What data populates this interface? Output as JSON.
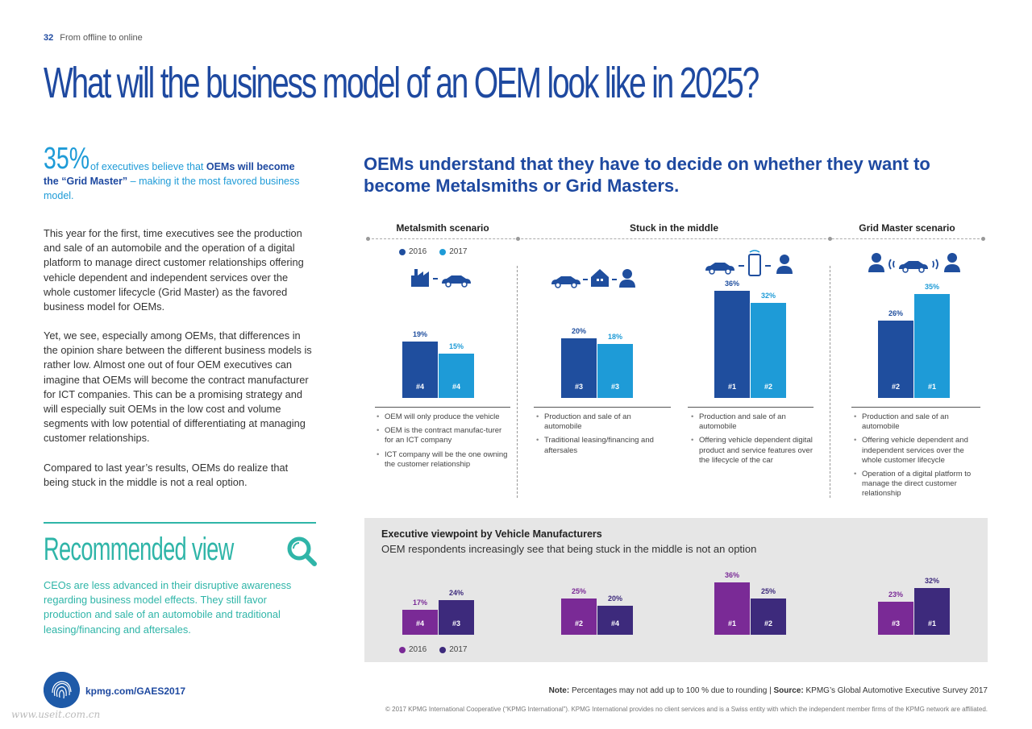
{
  "header": {
    "page_number": "32",
    "section": "From offline to online"
  },
  "title": "What will the business model of an OEM look like in 2025?",
  "stat": {
    "percent": "35%",
    "lead": "of executives believe that",
    "bold": "OEMs will become the “Grid Master”",
    "tail": " – making it the most favored business model."
  },
  "body": [
    "This year for the first, time executives see the production and sale of an automobile and the operation of a digital platform to manage direct customer relationships offering vehicle dependent and independent services over the whole customer lifecycle (Grid Master) as the favored business model for OEMs.",
    "Yet, we see, especially among OEMs, that differences in the opinion share between the different business models is rather low. Almost one out of four OEM executives can imagine that OEMs will become the contract manufacturer for ICT companies. This can be a promising strategy and will especially suit OEMs in the low cost and volume segments with low potential of differentiating at managing customer relationships.",
    "Compared to last year’s results, OEMs do realize that being stuck in the middle is not a real option."
  ],
  "recommended": {
    "title": "Recommended view",
    "text": "CEOs are less advanced in their disruptive awareness regarding business model effects. They still favor production and sale of an automobile and traditional leasing/financing and aftersales."
  },
  "headline": "OEMs understand that they have to decide on whether they want to become Metalsmiths or Grid Masters.",
  "scenarios": [
    "Metalsmith scenario",
    "Stuck in the middle",
    "Grid Master scenario"
  ],
  "legend": {
    "y2016": "2016",
    "y2017": "2017"
  },
  "colors": {
    "blue_dark": "#1f4e9e",
    "blue_light": "#1e9bd7",
    "purple_light": "#7a2a96",
    "purple_dark": "#3d2a7c",
    "teal": "#2fb5a8"
  },
  "chart_data": [
    {
      "type": "bar",
      "title": "",
      "categories": [
        "Metalsmith",
        "Stuck in the middle (a)",
        "Stuck in the middle (b)",
        "Grid Master"
      ],
      "series": [
        {
          "name": "2016",
          "values": [
            19,
            20,
            36,
            26
          ],
          "ranks": [
            "#4",
            "#3",
            "#1",
            "#2"
          ]
        },
        {
          "name": "2017",
          "values": [
            15,
            18,
            32,
            35
          ],
          "ranks": [
            "#4",
            "#3",
            "#2",
            "#1"
          ]
        }
      ],
      "value_labels_2016": [
        "19%",
        "20%",
        "36%",
        "26%"
      ],
      "value_labels_2017": [
        "15%",
        "18%",
        "32%",
        "35%"
      ]
    },
    {
      "type": "bar",
      "title": "Executive viewpoint by Vehicle Manufacturers",
      "subtitle": "OEM respondents increasingly see that being stuck in the middle is not an option",
      "categories": [
        "Metalsmith",
        "Stuck in the middle (a)",
        "Stuck in the middle (b)",
        "Grid Master"
      ],
      "series": [
        {
          "name": "2016",
          "values": [
            17,
            25,
            36,
            23
          ],
          "ranks": [
            "#4",
            "#2",
            "#1",
            "#3"
          ]
        },
        {
          "name": "2017",
          "values": [
            24,
            20,
            25,
            32
          ],
          "ranks": [
            "#3",
            "#4",
            "#2",
            "#1"
          ]
        }
      ],
      "value_labels_2016": [
        "17%",
        "25%",
        "36%",
        "23%"
      ],
      "value_labels_2017": [
        "24%",
        "20%",
        "25%",
        "32%"
      ]
    }
  ],
  "bullets": [
    [
      "OEM will only produce the vehicle",
      "OEM is the contract manufac-turer for an ICT company",
      "ICT company will be the one owning the customer relationship"
    ],
    [
      "Production and sale of an automobile",
      "Traditional leasing/financing and aftersales"
    ],
    [
      "Production and sale of an automobile",
      "Offering vehicle dependent digital product and service features over the lifecycle of the car"
    ],
    [
      "Production and sale of an automobile",
      "Offering vehicle dependent and independent services over the whole customer lifecycle",
      "Operation of a digital platform to manage the direct customer relationship"
    ]
  ],
  "footer": {
    "url": "kpmg.com/GAES2017",
    "note_label": "Note:",
    "note_text": " Percentages may not add up to 100 % due to rounding | ",
    "source_label": "Source:",
    "source_text": " KPMG’s Global Automotive Executive Survey 2017",
    "copyright": "© 2017 KPMG International Cooperative (“KPMG International”). KPMG International provides no client services and is a Swiss entity with which the independent member firms of the KPMG network are affiliated.",
    "watermark": "www.useit.com.cn"
  }
}
